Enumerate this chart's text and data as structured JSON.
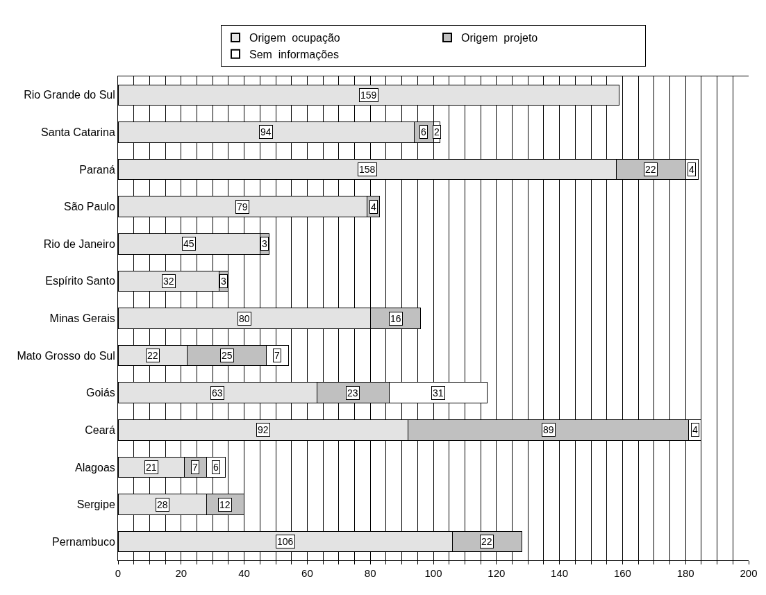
{
  "chart_data": {
    "type": "bar",
    "orientation": "horizontal",
    "stacked": true,
    "data_labels": true,
    "grid": "x",
    "legend": "top",
    "categories": [
      "Rio Grande do Sul",
      "Santa Catarina",
      "Paraná",
      "São Paulo",
      "Rio de Janeiro",
      "Espírito Santo",
      "Minas Gerais",
      "Mato Grosso do Sul",
      "Goiás",
      "Ceará",
      "Alagoas",
      "Sergipe",
      "Pernambuco"
    ],
    "series": [
      {
        "name": "Origem  ocupação",
        "color": "#e3e3e3",
        "values": [
          159,
          94,
          158,
          79,
          45,
          32,
          80,
          22,
          63,
          92,
          21,
          28,
          106
        ]
      },
      {
        "name": "Origem  projeto",
        "color": "#c0c0c0",
        "values": [
          null,
          6,
          22,
          4,
          3,
          3,
          16,
          25,
          23,
          89,
          7,
          12,
          22
        ]
      },
      {
        "name": "Sem  informações",
        "color": "#ffffff",
        "values": [
          null,
          2,
          4,
          null,
          null,
          null,
          null,
          7,
          31,
          4,
          6,
          null,
          null
        ]
      }
    ],
    "xlim": [
      0,
      200
    ],
    "xticks": [
      0,
      {
        "value": 5,
        "label": null
      },
      {
        "value": 10,
        "label": null
      },
      {
        "value": 15,
        "label": null
      },
      20,
      {
        "value": 25,
        "label": null
      },
      {
        "value": 30,
        "label": null
      },
      {
        "value": 35,
        "label": null
      },
      40,
      {
        "value": 45,
        "label": null
      },
      {
        "value": 50,
        "label": null
      },
      {
        "value": 55,
        "label": null
      },
      60,
      {
        "value": 65,
        "label": null
      },
      {
        "value": 70,
        "label": null
      },
      {
        "value": 75,
        "label": null
      },
      80,
      {
        "value": 85,
        "label": null
      },
      {
        "value": 90,
        "label": null
      },
      {
        "value": 95,
        "label": null
      },
      100,
      {
        "value": 105,
        "label": null
      },
      {
        "value": 110,
        "label": null
      },
      {
        "value": 115,
        "label": null
      },
      120,
      {
        "value": 125,
        "label": null
      },
      {
        "value": 130,
        "label": null
      },
      {
        "value": 135,
        "label": null
      },
      140,
      {
        "value": 145,
        "label": null
      },
      {
        "value": 150,
        "label": null
      },
      {
        "value": 155,
        "label": null
      },
      160,
      {
        "value": 165,
        "label": null
      },
      {
        "value": 170,
        "label": null
      },
      {
        "value": 175,
        "label": null
      },
      180,
      {
        "value": 185,
        "label": null
      },
      {
        "value": 190,
        "label": null
      },
      {
        "value": 195,
        "label": null
      },
      200
    ]
  }
}
